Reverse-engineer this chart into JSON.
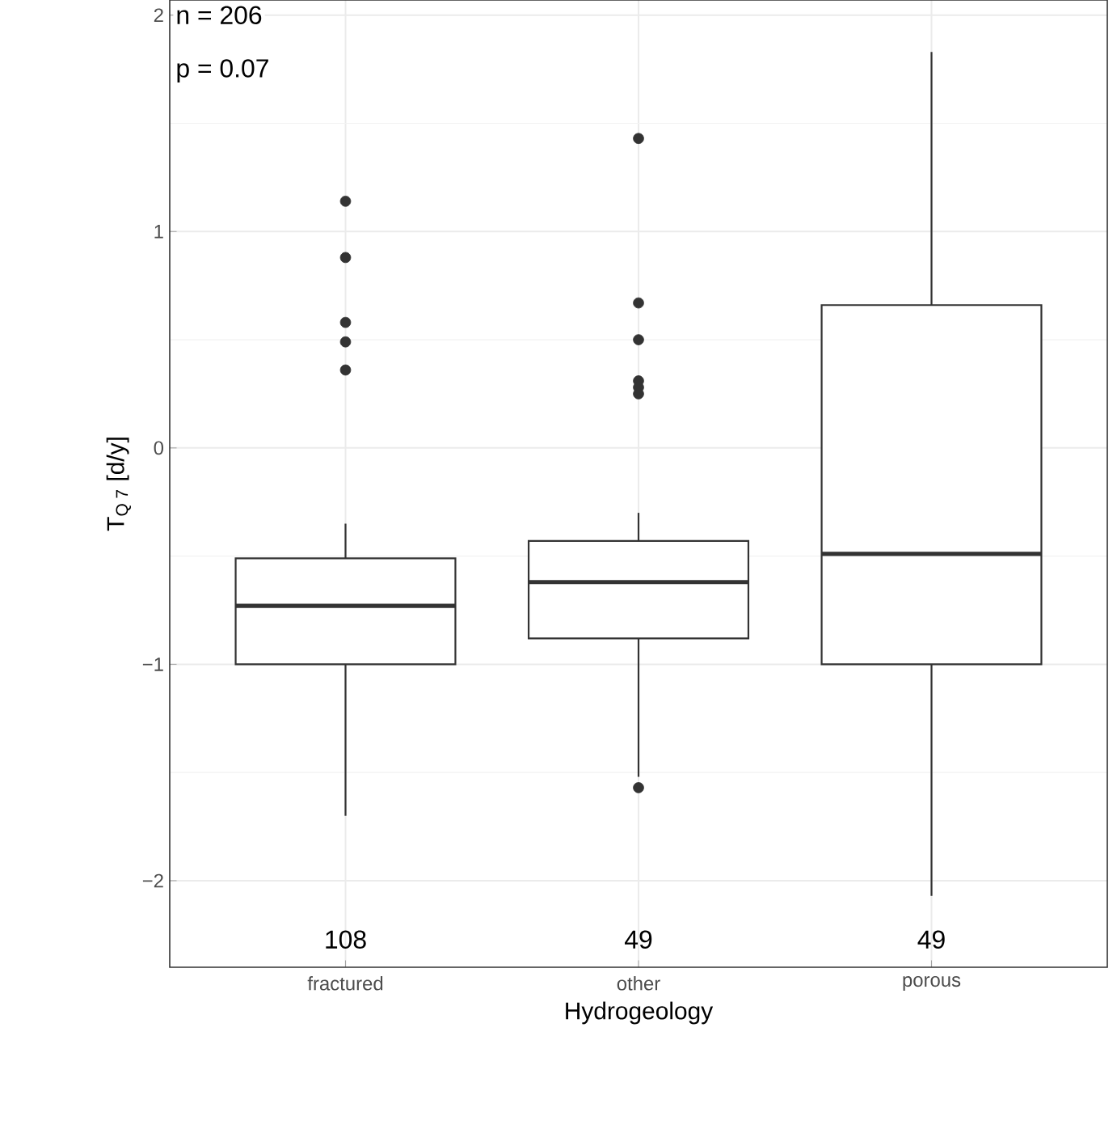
{
  "chart_data": {
    "type": "box",
    "xlabel": "Hydrogeology",
    "ylabel": "T$_{Q 7}$ [d/y]",
    "categories": [
      "fractured",
      "other",
      "porous"
    ],
    "boxes": [
      {
        "low": -1.7,
        "q1": -1.0,
        "median": -0.73,
        "q3": -0.51,
        "high": -0.35,
        "outliers": [
          1.14,
          0.88,
          0.58,
          0.49,
          0.36
        ]
      },
      {
        "low": -1.52,
        "q1": -0.88,
        "median": -0.62,
        "q3": -0.43,
        "high": -0.3,
        "outliers": [
          1.43,
          0.67,
          0.5,
          0.31,
          0.28,
          0.25,
          -1.57
        ]
      },
      {
        "low": -2.07,
        "q1": -1.0,
        "median": -0.49,
        "q3": 0.66,
        "high": 1.83
      }
    ],
    "color": "#333333",
    "ylim": [
      -2.4,
      2.07
    ],
    "yticks": [
      {
        "value": -2,
        "label": "−2"
      },
      {
        "value": -1,
        "label": "−1"
      },
      0,
      1,
      2
    ],
    "grid": true,
    "annotations": [
      "n =  206",
      "p = 0.07",
      "108",
      "49",
      "49"
    ]
  }
}
